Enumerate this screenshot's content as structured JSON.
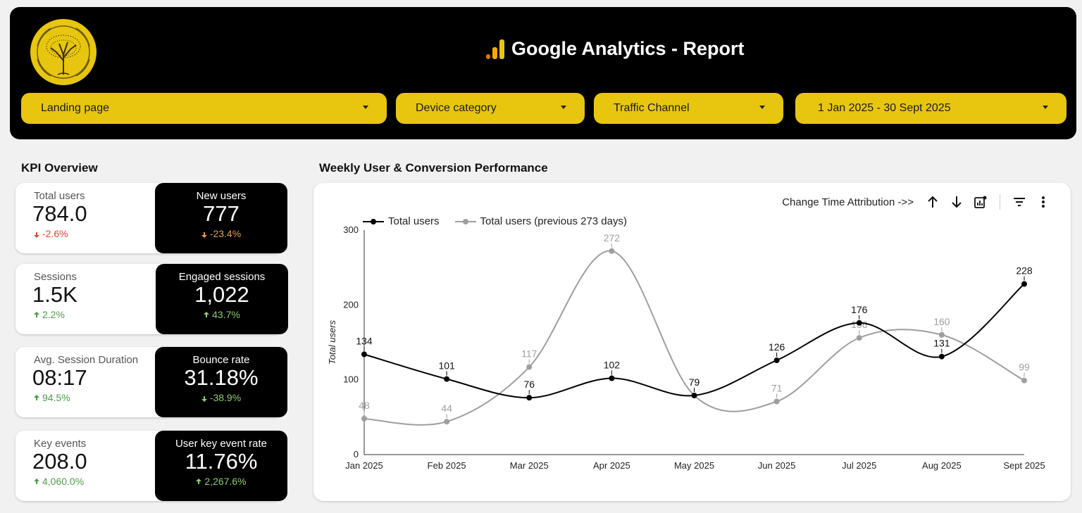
{
  "header": {
    "title": "Google Analytics - Report",
    "title_icon": "analytics-bars-icon",
    "logo": "tree-logo",
    "filters": [
      {
        "label": "Landing page"
      },
      {
        "label": "Device category"
      },
      {
        "label": "Traffic Channel"
      },
      {
        "label": "1 Jan 2025 - 30 Sept 2025"
      }
    ]
  },
  "kpi": {
    "title": "KPI Overview",
    "rows": [
      {
        "left": {
          "label": "Total users",
          "value": "784.0",
          "delta": "-2.6%",
          "direction": "down"
        },
        "right": {
          "label": "New users",
          "value": "777",
          "delta": "-23.4%",
          "direction": "down"
        }
      },
      {
        "left": {
          "label": "Sessions",
          "value": "1.5K",
          "delta": "2.2%",
          "direction": "up"
        },
        "right": {
          "label": "Engaged sessions",
          "value": "1,022",
          "delta": "43.7%",
          "direction": "up"
        }
      },
      {
        "left": {
          "label": "Avg. Session Duration",
          "value": "08:17",
          "delta": "94.5%",
          "direction": "up"
        },
        "right": {
          "label": "Bounce rate",
          "value": "31.18%",
          "delta": "-38.9%",
          "direction": "down"
        }
      },
      {
        "left": {
          "label": "Key events",
          "value": "208.0",
          "delta": "4,060.0%",
          "direction": "up"
        },
        "right": {
          "label": "User key event rate",
          "value": "11.76%",
          "delta": "2,267.6%",
          "direction": "up"
        }
      }
    ]
  },
  "chart_section": {
    "title": "Weekly User & Conversion Performance",
    "toolbar_text": "Change Time Attribution ->>",
    "toolbar_icons": [
      "arrow-up-icon",
      "arrow-down-icon",
      "chart-settings-icon",
      "filter-icon",
      "more-vert-icon"
    ]
  },
  "chart_data": {
    "type": "line",
    "categories": [
      "Jan 2025",
      "Feb 2025",
      "Mar 2025",
      "Apr 2025",
      "May 2025",
      "Jun 2025",
      "Jul 2025",
      "Aug 2025",
      "Sept 2025"
    ],
    "series": [
      {
        "name": "Total users",
        "values": [
          134,
          101,
          76,
          102,
          79,
          126,
          176,
          131,
          228
        ],
        "color": "#000000"
      },
      {
        "name": "Total users (previous 273 days)",
        "values": [
          48,
          44,
          117,
          272,
          79,
          71,
          156,
          160,
          99
        ],
        "color": "#9e9e9e"
      }
    ],
    "ylabel": "Total users",
    "ylim": [
      0,
      300
    ],
    "yticks": [
      0,
      100,
      200,
      300
    ],
    "legend": "top-left",
    "grid": false
  },
  "colors": {
    "accent": "#e8c60f",
    "header_bg": "#000000",
    "negative": "#e2442f",
    "positive": "#4f9a4a"
  }
}
